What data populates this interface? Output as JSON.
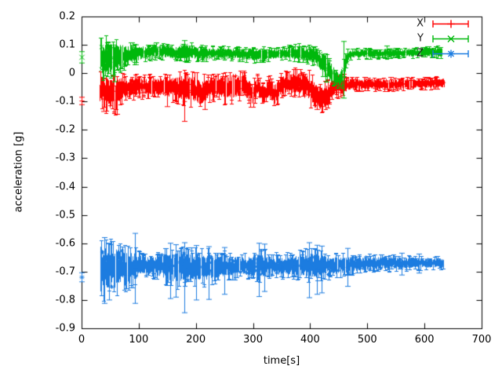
{
  "chart_data": {
    "type": "scatter",
    "plot_style": "errorbars",
    "title": "",
    "xlabel": "time[s]",
    "ylabel": "acceleration [g]",
    "xlim": [
      0,
      700
    ],
    "ylim": [
      -0.9,
      0.2
    ],
    "xticks": [
      0,
      100,
      200,
      300,
      400,
      500,
      600,
      700
    ],
    "xtick_labels": [
      "0",
      "100",
      "200",
      "300",
      "400",
      "500",
      "600",
      "700"
    ],
    "yticks": [
      0.2,
      0.1,
      0,
      -0.1,
      -0.2,
      -0.3,
      -0.4,
      -0.5,
      -0.6,
      -0.7,
      -0.8,
      -0.9
    ],
    "ytick_labels": [
      "0.2",
      "0.1",
      "0",
      "-0.1",
      "-0.2",
      "-0.3",
      "-0.4",
      "-0.5",
      "-0.6",
      "-0.7",
      "-0.8",
      "-0.9"
    ],
    "grid": false,
    "legend_position": "top-right-inside",
    "background": "#ffffff",
    "axis_color": "#000000",
    "series": [
      {
        "name": "X",
        "color": "#ff0000",
        "marker": "plus",
        "t_range": [
          32,
          634
        ],
        "start_point": {
          "t": 0,
          "value": -0.098,
          "err": 0.013
        },
        "band": [
          [
            33,
            -0.065,
            0.055
          ],
          [
            45,
            -0.062,
            0.052
          ],
          [
            58,
            -0.075,
            0.046
          ],
          [
            68,
            -0.055,
            0.038
          ],
          [
            90,
            -0.047,
            0.03
          ],
          [
            120,
            -0.046,
            0.028
          ],
          [
            150,
            -0.05,
            0.032
          ],
          [
            165,
            -0.052,
            0.038
          ],
          [
            180,
            -0.05,
            0.042
          ],
          [
            195,
            -0.055,
            0.042
          ],
          [
            210,
            -0.072,
            0.044
          ],
          [
            222,
            -0.055,
            0.036
          ],
          [
            235,
            -0.045,
            0.032
          ],
          [
            250,
            -0.052,
            0.038
          ],
          [
            265,
            -0.048,
            0.038
          ],
          [
            285,
            -0.04,
            0.032
          ],
          [
            298,
            -0.075,
            0.035
          ],
          [
            308,
            -0.045,
            0.03
          ],
          [
            318,
            -0.08,
            0.03
          ],
          [
            328,
            -0.05,
            0.03
          ],
          [
            338,
            -0.075,
            0.035
          ],
          [
            348,
            -0.045,
            0.03
          ],
          [
            362,
            -0.037,
            0.033
          ],
          [
            380,
            -0.033,
            0.038
          ],
          [
            395,
            -0.045,
            0.04
          ],
          [
            408,
            -0.08,
            0.042
          ],
          [
            422,
            -0.09,
            0.038
          ],
          [
            433,
            -0.07,
            0.035
          ],
          [
            443,
            -0.042,
            0.03
          ],
          [
            458,
            -0.046,
            0.028
          ],
          [
            472,
            -0.038,
            0.018
          ],
          [
            520,
            -0.04,
            0.016
          ],
          [
            560,
            -0.037,
            0.016
          ],
          [
            600,
            -0.036,
            0.015
          ],
          [
            634,
            -0.035,
            0.016
          ]
        ],
        "outlier_errorbars": [
          [
            38,
            -0.135,
            -0.02
          ],
          [
            62,
            -0.145,
            -0.045
          ],
          [
            150,
            -0.118,
            -0.035
          ],
          [
            180,
            -0.17,
            -0.03
          ],
          [
            215,
            -0.128,
            -0.04
          ],
          [
            412,
            -0.128,
            -0.05
          ],
          [
            541,
            -0.06,
            -0.015
          ]
        ]
      },
      {
        "name": "Y",
        "color": "#00b80c",
        "marker": "cross",
        "t_range": [
          33,
          630
        ],
        "start_point": {
          "t": 0,
          "value": 0.056,
          "err": 0.02
        },
        "band": [
          [
            33,
            0.05,
            0.055
          ],
          [
            50,
            0.055,
            0.05
          ],
          [
            65,
            0.06,
            0.04
          ],
          [
            80,
            0.065,
            0.032
          ],
          [
            95,
            0.07,
            0.026
          ],
          [
            115,
            0.073,
            0.02
          ],
          [
            130,
            0.08,
            0.022
          ],
          [
            150,
            0.074,
            0.02
          ],
          [
            170,
            0.072,
            0.022
          ],
          [
            185,
            0.076,
            0.024
          ],
          [
            205,
            0.07,
            0.02
          ],
          [
            240,
            0.072,
            0.017
          ],
          [
            270,
            0.069,
            0.017
          ],
          [
            300,
            0.065,
            0.02
          ],
          [
            320,
            0.066,
            0.018
          ],
          [
            350,
            0.069,
            0.016
          ],
          [
            375,
            0.071,
            0.022
          ],
          [
            395,
            0.068,
            0.024
          ],
          [
            410,
            0.06,
            0.028
          ],
          [
            425,
            0.03,
            0.038
          ],
          [
            438,
            -0.005,
            0.03
          ],
          [
            450,
            -0.022,
            0.022
          ],
          [
            457,
            -0.005,
            0.035
          ],
          [
            463,
            0.05,
            0.025
          ],
          [
            470,
            0.069,
            0.014
          ],
          [
            520,
            0.07,
            0.012
          ],
          [
            570,
            0.071,
            0.012
          ],
          [
            605,
            0.073,
            0.014
          ],
          [
            630,
            0.074,
            0.015
          ]
        ],
        "outlier_errorbars": [
          [
            58,
            -0.03,
            0.09
          ],
          [
            95,
            0.03,
            0.1
          ],
          [
            130,
            0.06,
            0.107
          ],
          [
            180,
            0.055,
            0.115
          ],
          [
            459,
            -0.088,
            0.112
          ],
          [
            534,
            0.062,
            0.096
          ]
        ]
      },
      {
        "name": "Z",
        "color": "#1c7ce0",
        "marker": "asterisk",
        "t_range": [
          33,
          633
        ],
        "start_point": {
          "t": 0,
          "value": -0.72,
          "err": 0.016
        },
        "band": [
          [
            33,
            -0.691,
            0.08
          ],
          [
            50,
            -0.69,
            0.072
          ],
          [
            65,
            -0.686,
            0.066
          ],
          [
            80,
            -0.69,
            0.06
          ],
          [
            95,
            -0.682,
            0.046
          ],
          [
            105,
            -0.676,
            0.03
          ],
          [
            125,
            -0.676,
            0.03
          ],
          [
            140,
            -0.68,
            0.04
          ],
          [
            155,
            -0.685,
            0.05
          ],
          [
            175,
            -0.686,
            0.05
          ],
          [
            195,
            -0.685,
            0.046
          ],
          [
            215,
            -0.684,
            0.045
          ],
          [
            235,
            -0.681,
            0.04
          ],
          [
            260,
            -0.68,
            0.032
          ],
          [
            285,
            -0.68,
            0.03
          ],
          [
            305,
            -0.68,
            0.038
          ],
          [
            315,
            -0.676,
            0.042
          ],
          [
            330,
            -0.68,
            0.032
          ],
          [
            350,
            -0.68,
            0.03
          ],
          [
            370,
            -0.678,
            0.032
          ],
          [
            395,
            -0.676,
            0.04
          ],
          [
            410,
            -0.68,
            0.042
          ],
          [
            425,
            -0.676,
            0.035
          ],
          [
            445,
            -0.678,
            0.03
          ],
          [
            465,
            -0.675,
            0.026
          ],
          [
            490,
            -0.672,
            0.023
          ],
          [
            520,
            -0.67,
            0.021
          ],
          [
            550,
            -0.669,
            0.02
          ],
          [
            580,
            -0.669,
            0.017
          ],
          [
            610,
            -0.67,
            0.016
          ],
          [
            633,
            -0.669,
            0.015
          ]
        ],
        "outlier_errorbars": [
          [
            40,
            -0.812,
            -0.58
          ],
          [
            48,
            -0.8,
            -0.6
          ],
          [
            93,
            -0.812,
            -0.565
          ],
          [
            155,
            -0.795,
            -0.6
          ],
          [
            165,
            -0.79,
            -0.605
          ],
          [
            180,
            -0.845,
            -0.598
          ],
          [
            200,
            -0.8,
            -0.608
          ],
          [
            222,
            -0.798,
            -0.612
          ],
          [
            250,
            -0.78,
            -0.615
          ],
          [
            310,
            -0.788,
            -0.6
          ],
          [
            320,
            -0.77,
            -0.603
          ],
          [
            398,
            -0.792,
            -0.598
          ],
          [
            412,
            -0.78,
            -0.607
          ],
          [
            420,
            -0.775,
            -0.61
          ],
          [
            465,
            -0.752,
            -0.618
          ],
          [
            560,
            -0.712,
            -0.635
          ],
          [
            590,
            -0.705,
            -0.638
          ]
        ]
      }
    ]
  }
}
